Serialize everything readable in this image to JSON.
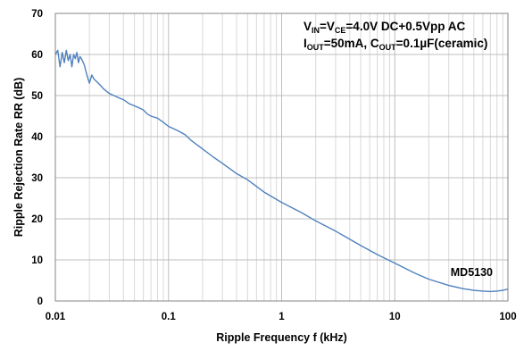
{
  "chart_data": {
    "type": "line",
    "x_scale": "log",
    "xlabel": "Ripple Frequency f (kHz)",
    "ylabel": "Ripple Rejection Rate RR (dB)",
    "xlim": [
      0.01,
      100
    ],
    "ylim": [
      0,
      70
    ],
    "x_ticks": [
      "0.01",
      "0.1",
      "1",
      "10",
      "100"
    ],
    "x_tick_values": [
      0.01,
      0.1,
      1,
      10,
      100
    ],
    "y_ticks": [
      "0",
      "10",
      "20",
      "30",
      "40",
      "50",
      "60",
      "70"
    ],
    "y_tick_values": [
      0,
      10,
      20,
      30,
      40,
      50,
      60,
      70
    ],
    "grid": true,
    "line_color": "#4f81bd",
    "annotation": {
      "line1": [
        {
          "t": "V",
          "sub": false
        },
        {
          "t": "IN",
          "sub": true
        },
        {
          "t": "=V",
          "sub": false
        },
        {
          "t": "CE",
          "sub": true
        },
        {
          "t": "=4.0V DC+0.5Vpp AC",
          "sub": false
        }
      ],
      "line2": [
        {
          "t": "I",
          "sub": false
        },
        {
          "t": "OUT",
          "sub": true
        },
        {
          "t": "=50mA, C",
          "sub": false
        },
        {
          "t": "OUT",
          "sub": true
        },
        {
          "t": "=0.1µF(ceramic)",
          "sub": false
        }
      ]
    },
    "series": [
      {
        "name": "MD5130",
        "x": [
          0.01,
          0.0105,
          0.011,
          0.0115,
          0.012,
          0.0125,
          0.013,
          0.0135,
          0.014,
          0.0145,
          0.015,
          0.0155,
          0.016,
          0.0165,
          0.017,
          0.018,
          0.019,
          0.02,
          0.021,
          0.022,
          0.023,
          0.025,
          0.027,
          0.03,
          0.033,
          0.036,
          0.04,
          0.045,
          0.05,
          0.055,
          0.06,
          0.065,
          0.07,
          0.08,
          0.09,
          0.1,
          0.12,
          0.14,
          0.16,
          0.2,
          0.25,
          0.3,
          0.4,
          0.5,
          0.7,
          1,
          1.5,
          2,
          3,
          5,
          7,
          10,
          15,
          20,
          30,
          40,
          50,
          60,
          70,
          80,
          90,
          100
        ],
        "y": [
          60,
          61,
          57,
          60.5,
          58,
          61,
          58.5,
          60,
          57,
          60,
          59,
          60.5,
          58,
          59.5,
          59,
          57.5,
          55,
          53,
          55,
          54,
          53.5,
          52.5,
          51.5,
          50.5,
          50,
          49.5,
          49,
          48,
          47.5,
          47,
          46.5,
          45.5,
          45,
          44.5,
          43.5,
          42.5,
          41.5,
          40.5,
          39,
          37,
          35,
          33.5,
          31,
          29.5,
          26.5,
          24,
          21.5,
          19.5,
          17,
          13.5,
          11.3,
          9.2,
          6.8,
          5.3,
          3.8,
          3,
          2.6,
          2.4,
          2.3,
          2.4,
          2.6,
          2.9
        ]
      }
    ]
  }
}
